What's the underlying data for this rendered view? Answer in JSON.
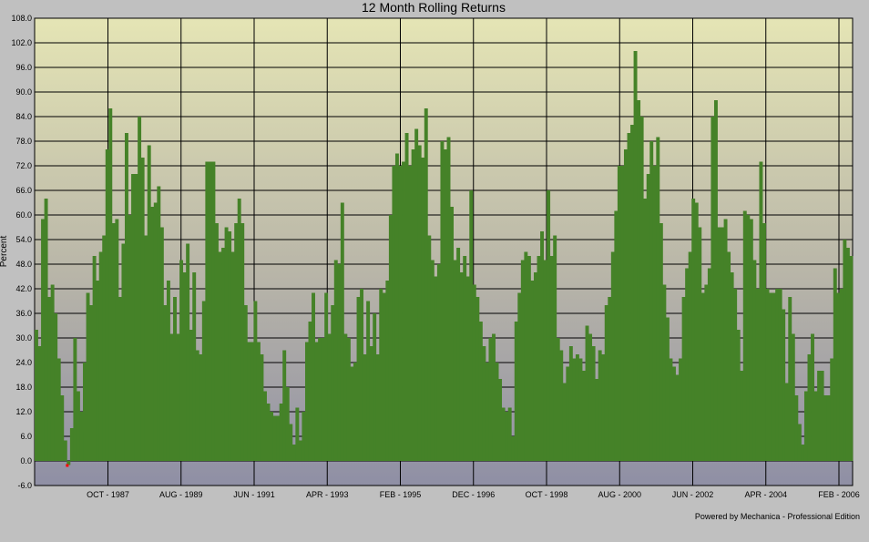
{
  "chart_data": {
    "type": "bar",
    "title": "12 Month Rolling Returns",
    "ylabel": "Percent",
    "xlabel": "",
    "footer": "Powered by Mechanica - Professional Edition",
    "ylim": [
      -6,
      108
    ],
    "yticks": [
      "-6.0",
      "0.0",
      "6.0",
      "12.0",
      "18.0",
      "24.0",
      "30.0",
      "36.0",
      "42.0",
      "48.0",
      "54.0",
      "60.0",
      "66.0",
      "72.0",
      "78.0",
      "84.0",
      "90.0",
      "96.0",
      "102.0",
      "108.0"
    ],
    "xticks": [
      "OCT -  1987",
      "AUG -  1989",
      "JUN -  1991",
      "APR -  1993",
      "FEB -  1995",
      "DEC -  1996",
      "OCT -  1998",
      "AUG -  2000",
      "JUN -  2002",
      "APR -  2004",
      "FEB -  2006"
    ],
    "grid": true,
    "series": [
      {
        "color": "#458228",
        "values": [
          32,
          28,
          59,
          64,
          40,
          43,
          36,
          25,
          16,
          5,
          -1,
          8,
          30,
          17,
          12,
          24,
          41,
          38,
          50,
          44,
          51,
          55,
          76,
          86,
          58,
          59,
          40,
          53,
          80,
          60,
          70,
          70,
          84,
          74,
          55,
          77,
          62,
          63,
          67,
          57,
          38,
          44,
          31,
          40,
          31,
          49,
          46,
          53,
          32,
          46,
          27,
          26,
          39,
          73,
          73,
          73,
          58,
          51,
          52,
          57,
          56,
          51,
          58,
          64,
          58,
          38,
          29,
          29,
          39,
          29,
          26,
          17,
          14,
          12,
          11,
          11,
          14,
          27,
          18,
          9,
          4,
          13,
          5,
          12,
          29,
          34,
          41,
          29,
          30,
          30,
          41,
          31,
          38,
          49,
          48,
          63,
          31,
          30,
          23,
          24,
          40,
          42,
          26,
          39,
          28,
          36,
          26,
          42,
          41,
          44,
          60,
          72,
          75,
          72,
          73,
          80,
          72,
          76,
          81,
          77,
          74,
          86,
          55,
          49,
          45,
          48,
          78,
          76,
          79,
          62,
          49,
          52,
          46,
          50,
          45,
          66,
          43,
          40,
          34,
          28,
          24,
          30,
          31,
          24,
          20,
          13,
          12,
          13,
          6,
          34,
          41,
          49,
          51,
          50,
          44,
          46,
          50,
          56,
          49,
          66,
          50,
          55,
          30,
          27,
          19,
          23,
          28,
          25,
          26,
          25,
          22,
          33,
          31,
          28,
          20,
          27,
          26,
          38,
          40,
          51,
          61,
          72,
          72,
          76,
          80,
          82,
          100,
          88,
          84,
          64,
          70,
          78,
          72,
          79,
          58,
          43,
          35,
          25,
          23,
          21,
          25,
          40,
          47,
          51,
          64,
          63,
          57,
          41,
          43,
          47,
          84,
          88,
          57,
          57,
          59,
          51,
          46,
          42,
          32,
          22,
          61,
          60,
          59,
          49,
          42,
          73,
          58,
          42,
          41,
          41,
          42,
          42,
          37,
          19,
          40,
          31,
          16,
          9,
          4,
          17,
          26,
          31,
          17,
          22,
          22,
          16,
          16,
          25,
          47,
          41,
          42,
          54,
          52,
          50
        ]
      }
    ]
  }
}
